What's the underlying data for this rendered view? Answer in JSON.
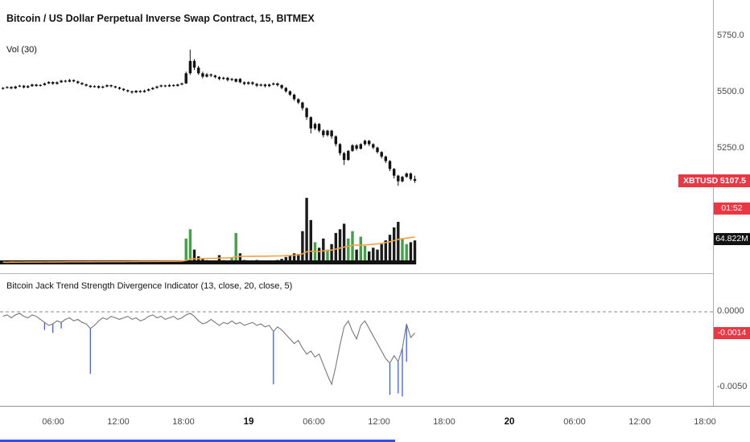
{
  "header": {
    "symbol_title": "Bitcoin / US Dollar Perpetual Inverse Swap Contract, 15, BITMEX",
    "volume_indicator_label": "Vol (30)"
  },
  "indicator_pane": {
    "title": "Bitcoin Jack Trend Strength Divergence Indicator (13, close, 20, close, 5)"
  },
  "price_axis": {
    "ticks": [
      "5750.0",
      "5500.0",
      "5250.0"
    ],
    "indicator_ticks": [
      "0.0000",
      "-0.0050"
    ],
    "symbol_badge": {
      "symbol": "XBTUSD",
      "price": "5107.5"
    },
    "countdown": "01:52",
    "volume_badge": "64.822M",
    "indicator_badge": "-0.0014"
  },
  "time_axis": {
    "labels": [
      {
        "text": "06:00",
        "major": false
      },
      {
        "text": "12:00",
        "major": false
      },
      {
        "text": "18:00",
        "major": false
      },
      {
        "text": "19",
        "major": true
      },
      {
        "text": "06:00",
        "major": false
      },
      {
        "text": "12:00",
        "major": false
      },
      {
        "text": "18:00",
        "major": false
      },
      {
        "text": "20",
        "major": true
      },
      {
        "text": "06:00",
        "major": false
      },
      {
        "text": "12:00",
        "major": false
      },
      {
        "text": "18:00",
        "major": false
      }
    ]
  },
  "colors": {
    "candle": "#131313",
    "volume_up": "#43a047",
    "volume_down": "#1b1b1b",
    "volume_ma": "#f2a045",
    "indicator_line": "#787878",
    "zero_line": "#8a8a8a",
    "spike_blue": "#2d50fa",
    "badge_red": "#eb3744",
    "badge_black": "#131313",
    "axis_text": "#4a4a4a"
  },
  "chart_data": [
    {
      "type": "candlestick",
      "title": "Bitcoin / US Dollar Perpetual Inverse Swap Contract",
      "symbol": "XBTUSD",
      "exchange": "BITMEX",
      "timeframe_minutes": 15,
      "last_price": 5107.5,
      "ylim": [
        5050,
        5790
      ],
      "yticks": [
        5750,
        5500,
        5250
      ],
      "ohlc": [
        [
          5516,
          5524,
          5512,
          5520
        ],
        [
          5520,
          5528,
          5517,
          5524
        ],
        [
          5524,
          5527,
          5514,
          5518
        ],
        [
          5518,
          5530,
          5515,
          5526
        ],
        [
          5526,
          5534,
          5523,
          5530
        ],
        [
          5530,
          5533,
          5518,
          5522
        ],
        [
          5522,
          5532,
          5519,
          5528
        ],
        [
          5528,
          5539,
          5525,
          5535
        ],
        [
          5535,
          5538,
          5525,
          5529
        ],
        [
          5529,
          5537,
          5526,
          5533
        ],
        [
          5533,
          5544,
          5530,
          5540
        ],
        [
          5540,
          5550,
          5537,
          5546
        ],
        [
          5546,
          5549,
          5534,
          5538
        ],
        [
          5538,
          5549,
          5535,
          5545
        ],
        [
          5545,
          5556,
          5542,
          5552
        ],
        [
          5552,
          5556,
          5544,
          5548
        ],
        [
          5548,
          5560,
          5545,
          5555
        ],
        [
          5555,
          5558,
          5545,
          5549
        ],
        [
          5549,
          5552,
          5538,
          5542
        ],
        [
          5542,
          5545,
          5532,
          5536
        ],
        [
          5536,
          5539,
          5526,
          5530
        ],
        [
          5530,
          5533,
          5520,
          5524
        ],
        [
          5524,
          5532,
          5521,
          5528
        ],
        [
          5528,
          5531,
          5517,
          5521
        ],
        [
          5521,
          5530,
          5518,
          5526
        ],
        [
          5526,
          5536,
          5523,
          5532
        ],
        [
          5532,
          5535,
          5523,
          5527
        ],
        [
          5527,
          5530,
          5518,
          5522
        ],
        [
          5522,
          5525,
          5512,
          5516
        ],
        [
          5516,
          5519,
          5506,
          5510
        ],
        [
          5510,
          5513,
          5500,
          5505
        ],
        [
          5505,
          5508,
          5494,
          5500
        ],
        [
          5500,
          5511,
          5497,
          5507
        ],
        [
          5507,
          5510,
          5498,
          5502
        ],
        [
          5502,
          5512,
          5499,
          5508
        ],
        [
          5508,
          5518,
          5505,
          5514
        ],
        [
          5514,
          5524,
          5511,
          5520
        ],
        [
          5520,
          5530,
          5517,
          5526
        ],
        [
          5526,
          5535,
          5523,
          5531
        ],
        [
          5531,
          5534,
          5523,
          5527
        ],
        [
          5527,
          5537,
          5524,
          5533
        ],
        [
          5533,
          5536,
          5525,
          5529
        ],
        [
          5529,
          5539,
          5526,
          5535
        ],
        [
          5535,
          5544,
          5532,
          5540
        ],
        [
          5540,
          5592,
          5538,
          5585
        ],
        [
          5585,
          5690,
          5578,
          5640
        ],
        [
          5640,
          5648,
          5600,
          5610
        ],
        [
          5610,
          5618,
          5578,
          5585
        ],
        [
          5585,
          5592,
          5562,
          5570
        ],
        [
          5570,
          5586,
          5566,
          5580
        ],
        [
          5580,
          5584,
          5568,
          5575
        ],
        [
          5575,
          5579,
          5562,
          5568
        ],
        [
          5568,
          5572,
          5554,
          5560
        ],
        [
          5560,
          5570,
          5556,
          5565
        ],
        [
          5565,
          5569,
          5549,
          5555
        ],
        [
          5555,
          5565,
          5551,
          5560
        ],
        [
          5548,
          5562,
          5544,
          5560
        ],
        [
          5560,
          5564,
          5541,
          5545
        ],
        [
          5545,
          5549,
          5532,
          5538
        ],
        [
          5538,
          5549,
          5534,
          5545
        ],
        [
          5545,
          5549,
          5532,
          5538
        ],
        [
          5538,
          5542,
          5524,
          5530
        ],
        [
          5530,
          5539,
          5526,
          5535
        ],
        [
          5535,
          5539,
          5522,
          5528
        ],
        [
          5528,
          5539,
          5524,
          5535
        ],
        [
          5535,
          5544,
          5531,
          5540
        ],
        [
          5540,
          5544,
          5526,
          5532
        ],
        [
          5532,
          5536,
          5514,
          5520
        ],
        [
          5520,
          5524,
          5499,
          5505
        ],
        [
          5505,
          5509,
          5484,
          5490
        ],
        [
          5490,
          5494,
          5463,
          5470
        ],
        [
          5470,
          5474,
          5448,
          5455
        ],
        [
          5455,
          5459,
          5420,
          5430
        ],
        [
          5430,
          5434,
          5378,
          5390
        ],
        [
          5390,
          5394,
          5318,
          5340
        ],
        [
          5340,
          5366,
          5332,
          5360
        ],
        [
          5360,
          5364,
          5322,
          5330
        ],
        [
          5330,
          5336,
          5300,
          5310
        ],
        [
          5310,
          5334,
          5304,
          5330
        ],
        [
          5330,
          5334,
          5294,
          5305
        ],
        [
          5305,
          5309,
          5260,
          5270
        ],
        [
          5270,
          5274,
          5220,
          5230
        ],
        [
          5230,
          5236,
          5178,
          5200
        ],
        [
          5200,
          5244,
          5196,
          5240
        ],
        [
          5240,
          5270,
          5236,
          5265
        ],
        [
          5265,
          5270,
          5242,
          5250
        ],
        [
          5250,
          5274,
          5246,
          5270
        ],
        [
          5270,
          5290,
          5264,
          5285
        ],
        [
          5285,
          5289,
          5262,
          5270
        ],
        [
          5270,
          5274,
          5248,
          5255
        ],
        [
          5255,
          5259,
          5228,
          5235
        ],
        [
          5235,
          5239,
          5206,
          5215
        ],
        [
          5215,
          5219,
          5186,
          5195
        ],
        [
          5195,
          5199,
          5150,
          5160
        ],
        [
          5160,
          5164,
          5118,
          5130
        ],
        [
          5130,
          5134,
          5085,
          5105
        ],
        [
          5105,
          5129,
          5100,
          5125
        ],
        [
          5125,
          5144,
          5120,
          5140
        ],
        [
          5140,
          5144,
          5108,
          5115
        ],
        [
          5115,
          5130,
          5098,
          5107.5
        ]
      ]
    },
    {
      "type": "bar",
      "name": "Volume",
      "ma_period": 30,
      "last_label": "64.822M",
      "unit": "millions",
      "values": [
        3,
        2,
        4,
        2,
        3,
        5,
        3,
        4,
        2,
        3,
        6,
        4,
        3,
        5,
        4,
        6,
        8,
        5,
        4,
        3,
        4,
        6,
        3,
        5,
        7,
        4,
        3,
        5,
        4,
        6,
        8,
        6,
        5,
        7,
        5,
        4,
        6,
        5,
        7,
        4,
        5,
        6,
        8,
        10,
        70,
        95,
        40,
        22,
        15,
        12,
        10,
        8,
        25,
        12,
        10,
        18,
        85,
        30,
        12,
        10,
        8,
        12,
        9,
        7,
        10,
        8,
        12,
        15,
        20,
        25,
        30,
        28,
        90,
        180,
        120,
        60,
        45,
        70,
        40,
        55,
        85,
        95,
        110,
        70,
        90,
        40,
        75,
        50,
        35,
        45,
        40,
        55,
        65,
        80,
        100,
        115,
        70,
        55,
        60,
        64.822
      ]
    },
    {
      "type": "line",
      "name": "Bitcoin Jack Trend Strength Divergence Indicator",
      "params": "(13, close, 20, close, 5)",
      "last_value": -0.0014,
      "ylim": [
        -0.0058,
        0.0006
      ],
      "yticks": [
        0,
        -0.005
      ],
      "zero_line_dashed": true,
      "values": [
        -0.0003,
        -0.0002,
        -0.0004,
        -0.0002,
        -0.0001,
        -0.0003,
        -0.0004,
        -0.0002,
        -0.0003,
        -0.0005,
        -0.0007,
        -0.0009,
        -0.0008,
        -0.0006,
        -0.0007,
        -0.0005,
        -0.0004,
        -0.0006,
        -0.0005,
        -0.0007,
        -0.0008,
        -0.0011,
        -0.0009,
        -0.0006,
        -0.0004,
        -0.0005,
        -0.0003,
        -0.0004,
        -0.0005,
        -0.0004,
        -0.0003,
        -0.0005,
        -0.0004,
        -0.0006,
        -0.0005,
        -0.0003,
        -0.0002,
        -0.0004,
        -0.0003,
        -0.0005,
        -0.0004,
        -0.0003,
        -0.0005,
        -0.0004,
        -0.0002,
        -0.0001,
        -0.0003,
        -0.0006,
        -0.0008,
        -0.0007,
        -0.0005,
        -0.0007,
        -0.0009,
        -0.0007,
        -0.0008,
        -0.0006,
        -0.0008,
        -0.0007,
        -0.0009,
        -0.0008,
        -0.0007,
        -0.0009,
        -0.0008,
        -0.001,
        -0.0009,
        -0.0013,
        -0.001,
        -0.0012,
        -0.0015,
        -0.0018,
        -0.0021,
        -0.0019,
        -0.0024,
        -0.0028,
        -0.0026,
        -0.003,
        -0.0028,
        -0.0035,
        -0.0042,
        -0.0048,
        -0.0036,
        -0.0022,
        -0.001,
        -0.0006,
        -0.0013,
        -0.0018,
        -0.0009,
        -0.0006,
        -0.0011,
        -0.0016,
        -0.0021,
        -0.0026,
        -0.0031,
        -0.0034,
        -0.0029,
        -0.0033,
        -0.0024,
        -0.0008,
        -0.0017,
        -0.0014
      ],
      "spikes": [
        {
          "bar": 10,
          "value": -0.0012
        },
        {
          "bar": 12,
          "value": -0.0014
        },
        {
          "bar": 14,
          "value": -0.0011
        },
        {
          "bar": 21,
          "value": -0.0041
        },
        {
          "bar": 65,
          "value": -0.0048
        },
        {
          "bar": 93,
          "value": -0.0055
        },
        {
          "bar": 95,
          "value": -0.0054
        },
        {
          "bar": 96,
          "value": -0.0056
        },
        {
          "bar": 97,
          "value": -0.0033
        }
      ]
    }
  ]
}
